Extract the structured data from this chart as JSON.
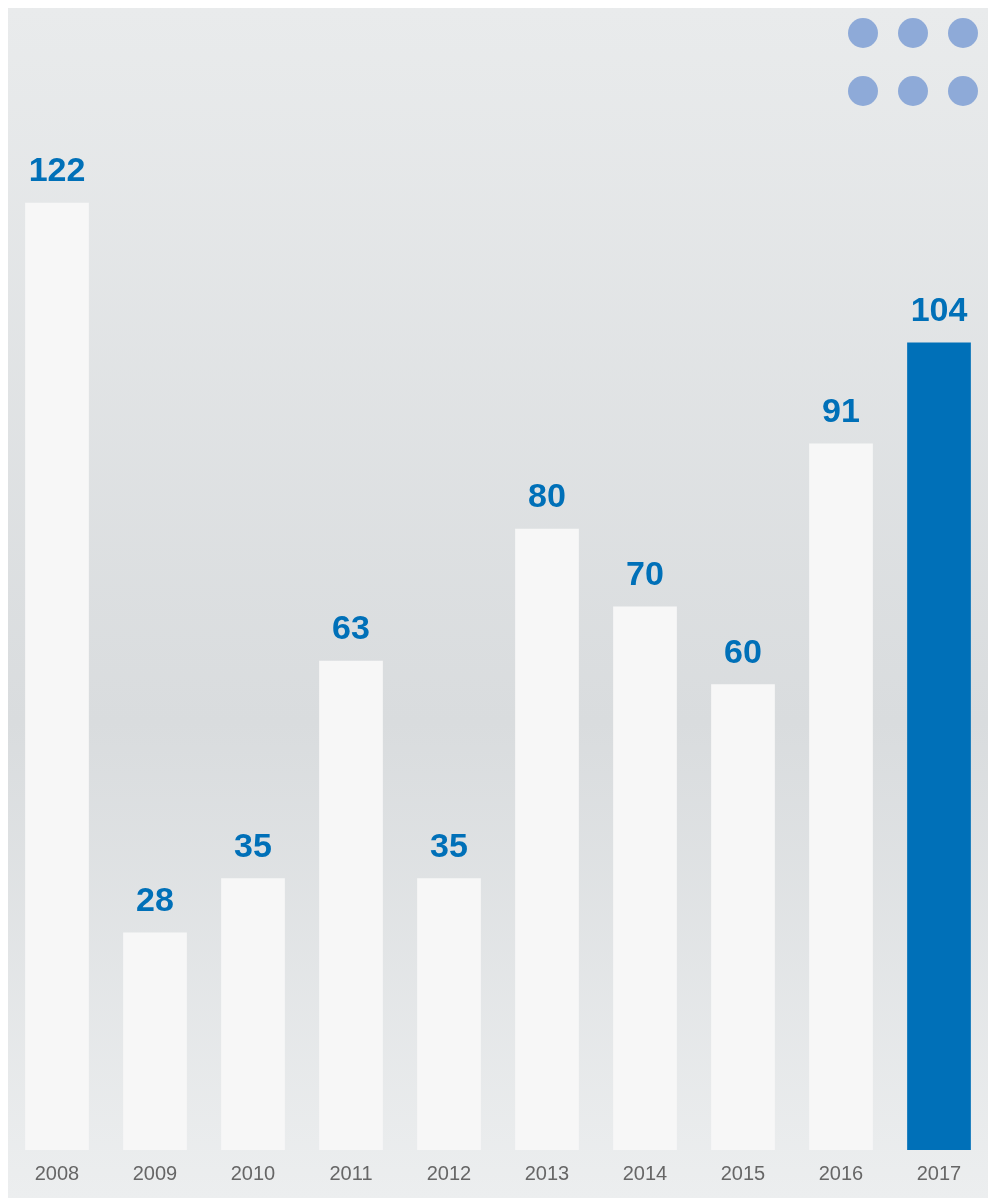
{
  "chart_data": {
    "type": "bar",
    "categories": [
      "2008",
      "2009",
      "2010",
      "2011",
      "2012",
      "2013",
      "2014",
      "2015",
      "2016",
      "2017"
    ],
    "values": [
      122,
      28,
      35,
      63,
      35,
      80,
      70,
      60,
      91,
      104
    ],
    "colors": [
      "#f7f7f7",
      "#f7f7f7",
      "#f7f7f7",
      "#f7f7f7",
      "#f7f7f7",
      "#f7f7f7",
      "#f7f7f7",
      "#f7f7f7",
      "#f7f7f7",
      "#0070b8"
    ],
    "data_labels": true,
    "grid": false,
    "legend": false
  }
}
